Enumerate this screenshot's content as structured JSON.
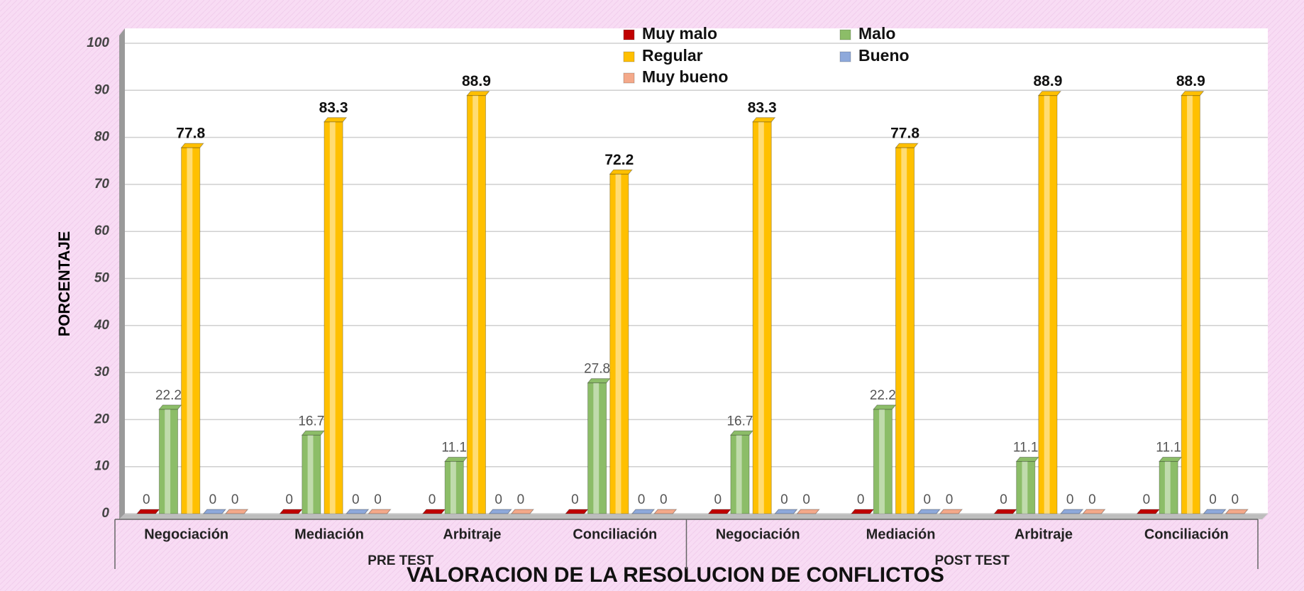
{
  "chart_data": {
    "type": "bar",
    "title": "VALORACION DE LA RESOLUCION DE CONFLICTOS",
    "y_label": "PORCENTAJE",
    "groups": [
      "PRE TEST",
      "POST TEST"
    ],
    "categories": [
      "Negociación",
      "Mediación",
      "Arbitraje",
      "Conciliación",
      "Negociación",
      "Mediación",
      "Arbitraje",
      "Conciliación"
    ],
    "series": [
      {
        "name": "Muy malo",
        "color": "#c00000",
        "values": [
          0,
          0,
          0,
          0,
          0,
          0,
          0,
          0
        ]
      },
      {
        "name": "Malo",
        "color": "#8cbd68",
        "values": [
          22.2,
          16.7,
          11.1,
          27.8,
          16.7,
          22.2,
          11.1,
          11.1
        ]
      },
      {
        "name": "Regular",
        "color": "#ffc000",
        "values": [
          77.8,
          83.3,
          88.9,
          72.2,
          83.3,
          77.8,
          88.9,
          88.9
        ]
      },
      {
        "name": "Bueno",
        "color": "#8ea9db",
        "values": [
          0,
          0,
          0,
          0,
          0,
          0,
          0,
          0
        ]
      },
      {
        "name": "Muy bueno",
        "color": "#f4a98a",
        "values": [
          0,
          0,
          0,
          0,
          0,
          0,
          0,
          0
        ]
      }
    ],
    "ylim": [
      0,
      100
    ],
    "yticks": [
      0,
      10,
      20,
      30,
      40,
      50,
      60,
      70,
      80,
      90,
      100
    ],
    "grid": true
  }
}
